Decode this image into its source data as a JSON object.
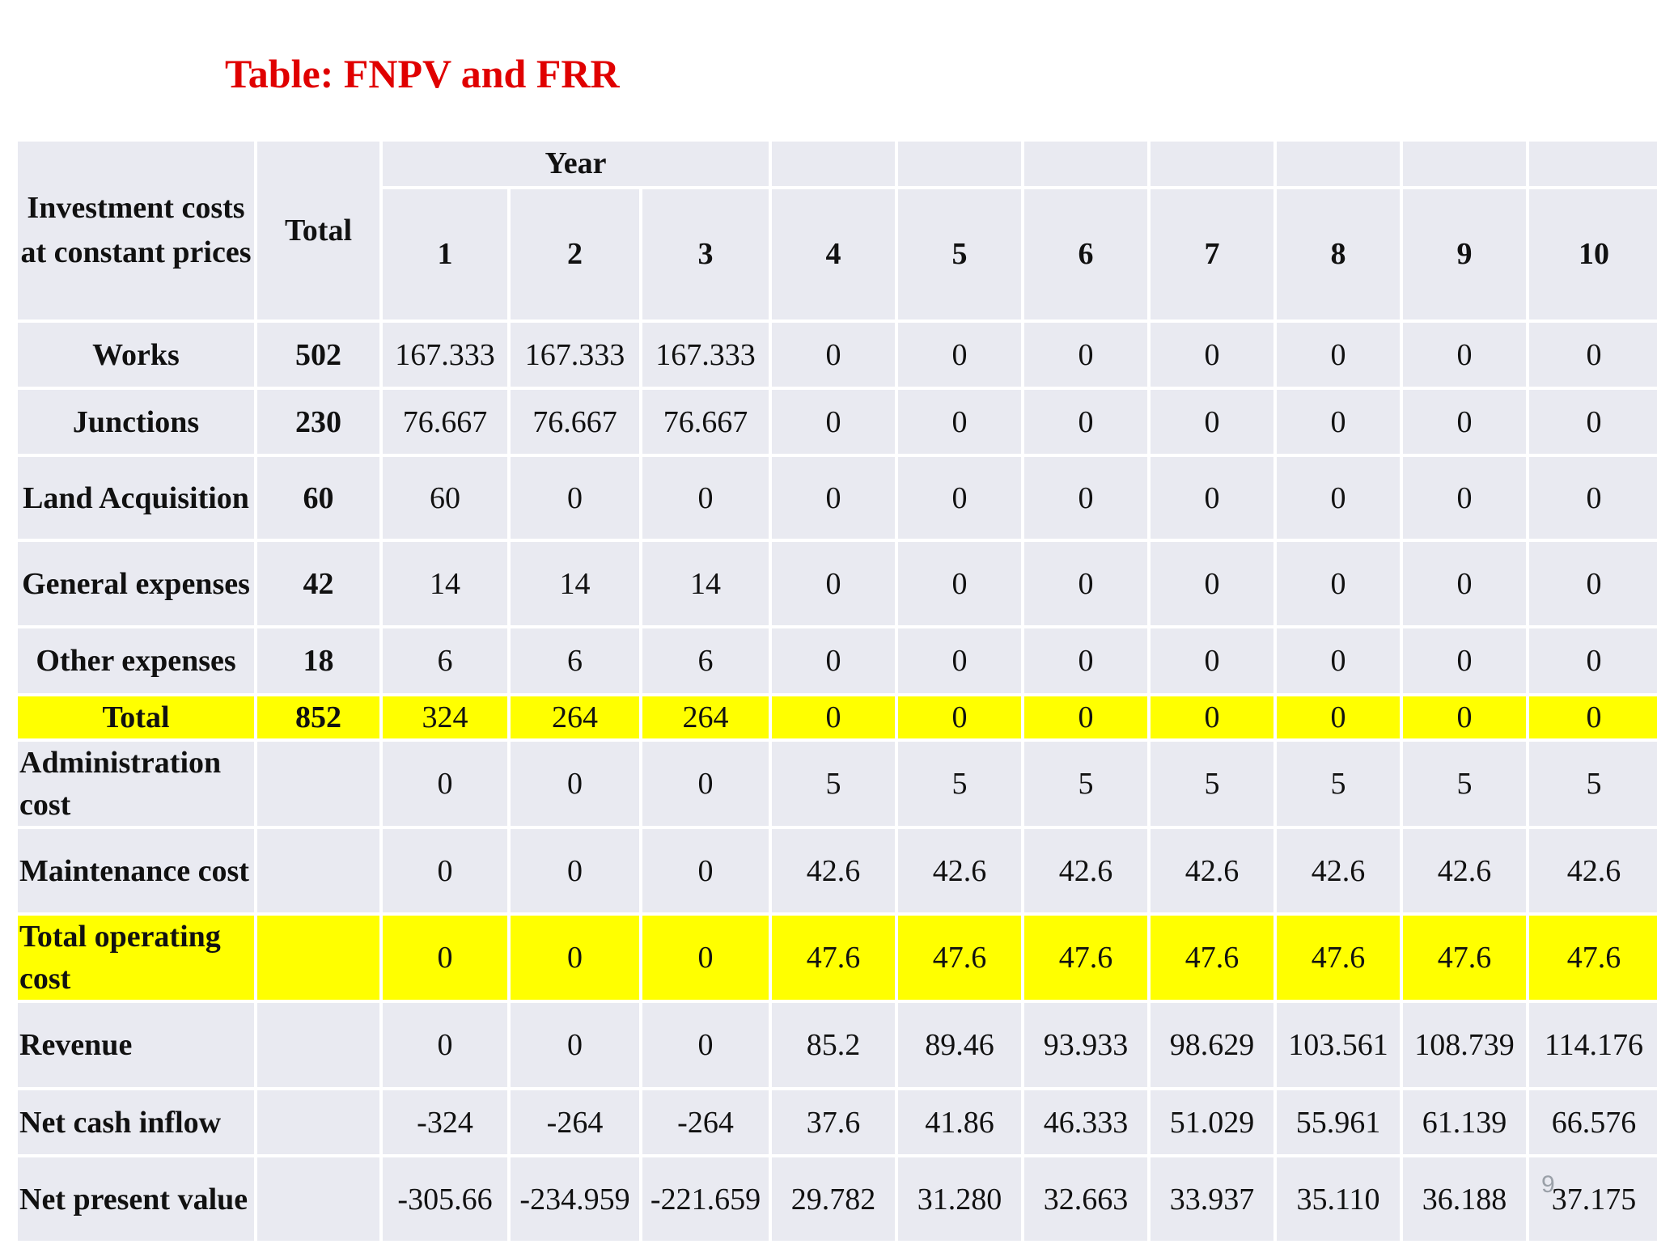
{
  "title": "Table: FNPV and FRR",
  "page_number": "9",
  "header": {
    "first_col": "Investment costs at constant prices",
    "total": "Total",
    "year": "Year",
    "years": [
      "1",
      "2",
      "3",
      "4",
      "5",
      "6",
      "7",
      "8",
      "9",
      "10"
    ]
  },
  "rows": [
    {
      "label": "Works",
      "total": "502",
      "values": [
        "167.333",
        "167.333",
        "167.333",
        "0",
        "0",
        "0",
        "0",
        "0",
        "0",
        "0"
      ]
    },
    {
      "label": "Junctions",
      "total": "230",
      "values": [
        "76.667",
        "76.667",
        "76.667",
        "0",
        "0",
        "0",
        "0",
        "0",
        "0",
        "0"
      ]
    },
    {
      "label": "Land Acquisition",
      "total": "60",
      "values": [
        "60",
        "0",
        "0",
        "0",
        "0",
        "0",
        "0",
        "0",
        "0",
        "0"
      ]
    },
    {
      "label": "General expenses",
      "total": "42",
      "values": [
        "14",
        "14",
        "14",
        "0",
        "0",
        "0",
        "0",
        "0",
        "0",
        "0"
      ]
    },
    {
      "label": "Other expenses",
      "total": "18",
      "values": [
        "6",
        "6",
        "6",
        "0",
        "0",
        "0",
        "0",
        "0",
        "0",
        "0"
      ]
    },
    {
      "label": "Total",
      "total": "852",
      "values": [
        "324",
        "264",
        "264",
        "0",
        "0",
        "0",
        "0",
        "0",
        "0",
        "0"
      ]
    },
    {
      "label": "Administration cost",
      "total": "",
      "values": [
        "0",
        "0",
        "0",
        "5",
        "5",
        "5",
        "5",
        "5",
        "5",
        "5"
      ]
    },
    {
      "label": "Maintenance cost",
      "total": "",
      "values": [
        "0",
        "0",
        "0",
        "42.6",
        "42.6",
        "42.6",
        "42.6",
        "42.6",
        "42.6",
        "42.6"
      ]
    },
    {
      "label": "Total operating cost",
      "total": "",
      "values": [
        "0",
        "0",
        "0",
        "47.6",
        "47.6",
        "47.6",
        "47.6",
        "47.6",
        "47.6",
        "47.6"
      ]
    },
    {
      "label": "Revenue",
      "total": "",
      "values": [
        "0",
        "0",
        "0",
        "85.2",
        "89.46",
        "93.933",
        "98.629",
        "103.561",
        "108.739",
        "114.176"
      ]
    },
    {
      "label": "Net cash inflow",
      "total": "",
      "values": [
        "-324",
        "-264",
        "-264",
        "37.6",
        "41.86",
        "46.333",
        "51.029",
        "55.961",
        "61.139",
        "66.576"
      ]
    },
    {
      "label": "Net present value",
      "total": "",
      "values": [
        "-305.66",
        "-234.959",
        "-221.659",
        "29.782",
        "31.280",
        "32.663",
        "33.937",
        "35.110",
        "36.188",
        "37.175"
      ]
    }
  ],
  "colors": {
    "title": "#e00000",
    "header_text": "#1a2a6c",
    "row_label": "#a0581b",
    "cell_bg": "#e9eaf1",
    "highlight": "#ffff00"
  }
}
